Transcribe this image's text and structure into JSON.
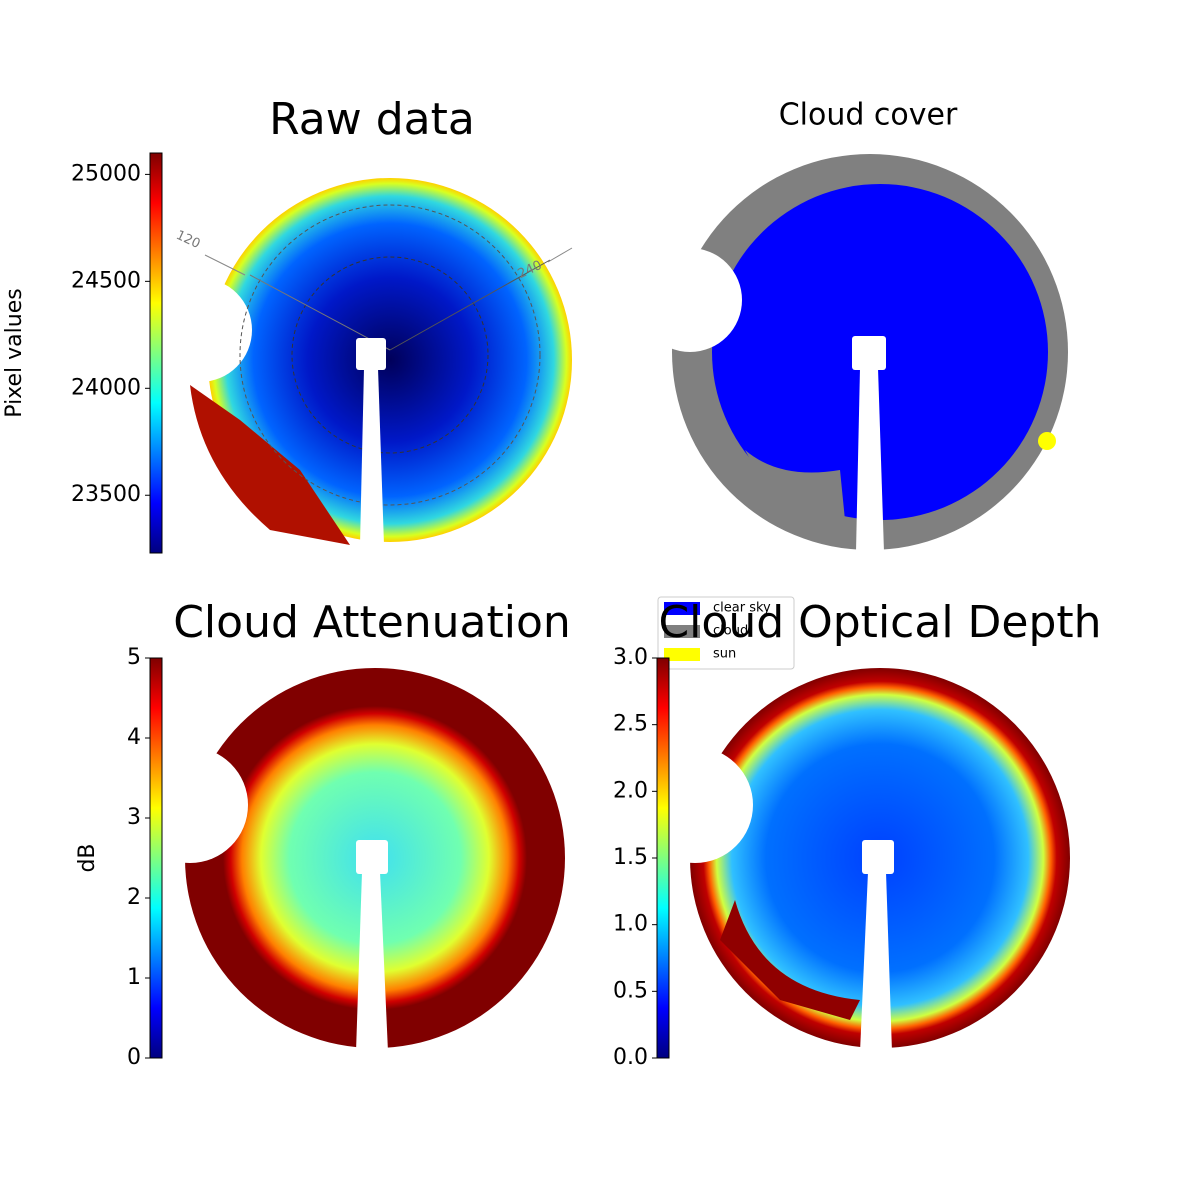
{
  "chart_data": [
    {
      "type": "image",
      "title": "Raw data",
      "colormap": "jet",
      "colorbar_label": "Pixel values",
      "clim": [
        23230,
        25100
      ],
      "cticks": [
        23500,
        24000,
        24500,
        25000
      ],
      "annotations": [
        "120",
        "240"
      ]
    },
    {
      "type": "image",
      "title": "Cloud cover",
      "series": [
        {
          "name": "clear sky",
          "color": "#0000ff"
        },
        {
          "name": "cloud",
          "color": "#808080"
        },
        {
          "name": "sun",
          "color": "#ffff00"
        }
      ]
    },
    {
      "type": "image",
      "title": "Cloud Attenuation",
      "colormap": "jet",
      "colorbar_label": "dB",
      "clim": [
        0,
        5
      ],
      "cticks": [
        0,
        1,
        2,
        3,
        4,
        5
      ]
    },
    {
      "type": "image",
      "title": "Cloud Optical Depth",
      "colormap": "jet",
      "clim": [
        0,
        3
      ],
      "cticks": [
        {
          "value": 0,
          "label": "0.0"
        },
        {
          "value": 0.5,
          "label": "0.5"
        },
        {
          "value": 1,
          "label": "1.0"
        },
        {
          "value": 1.5,
          "label": "1.5"
        },
        {
          "value": 2,
          "label": "2.0"
        },
        {
          "value": 2.5,
          "label": "2.5"
        },
        {
          "value": 3,
          "label": "3.0"
        }
      ]
    }
  ]
}
